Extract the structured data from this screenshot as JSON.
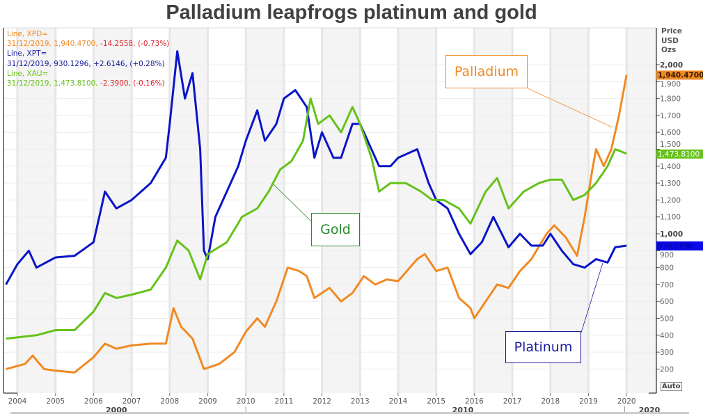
{
  "chart_data": {
    "type": "line",
    "title": "Palladium leapfrogs platinum and gold",
    "ylabel": "Price USD Ozs",
    "ylim": [
      150,
      2100
    ],
    "xlim": [
      2003.7,
      2020.8
    ],
    "y_ticks": [
      200,
      300,
      400,
      500,
      600,
      700,
      800,
      900,
      1000,
      1100,
      1200,
      1300,
      1400,
      1500,
      1600,
      1700,
      1800,
      1900,
      2000
    ],
    "x_ticks": [
      "2004",
      "2005",
      "2006",
      "2007",
      "2008",
      "2009",
      "2010",
      "2011",
      "2012",
      "2013",
      "2014",
      "2015",
      "2016",
      "2017",
      "2018",
      "2019",
      "2020"
    ],
    "decade_labels": [
      "2000",
      "2010",
      "2020"
    ],
    "grid": true,
    "auto_label": "Auto",
    "legend": [
      {
        "line": "Line, XPD=",
        "date": "31/12/2019",
        "value": "1,940.4700",
        "change": "-14.2558",
        "pct": "(-0.73%)",
        "color": "#f08a24",
        "change_color": "#e0202a"
      },
      {
        "line": "Line, XPT=",
        "date": "31/12/2019",
        "value": "930.1296",
        "change": "+2.6146",
        "pct": "(+0.28%)",
        "color": "#1a1aa0",
        "change_color": "#1a1aa0"
      },
      {
        "line": "Line, XAU=",
        "date": "31/12/2019",
        "value": "1,473.8100",
        "change": "-2.3900",
        "pct": "(-0.16%)",
        "color": "#66c21a",
        "change_color": "#e0202a"
      }
    ],
    "price_tags": [
      {
        "label": "1,940.4700",
        "value": 1940.47,
        "bg": "#f08a24",
        "fg": "#3a1a00"
      },
      {
        "label": "1,473.8100",
        "value": 1473.81,
        "bg": "#66c21a",
        "fg": "#ffffff"
      },
      {
        "label": "930.1296",
        "value": 930.13,
        "bg": "#0a0ae6",
        "fg": "#0000a0"
      }
    ],
    "series": [
      {
        "name": "Palladium",
        "color": "#f08a24",
        "x": [
          2003.7,
          2004.2,
          2004.4,
          2004.7,
          2005,
          2005.5,
          2006,
          2006.3,
          2006.6,
          2007,
          2007.5,
          2007.9,
          2008.1,
          2008.3,
          2008.6,
          2008.9,
          2009.3,
          2009.7,
          2010,
          2010.3,
          2010.5,
          2010.8,
          2011.1,
          2011.4,
          2011.6,
          2011.8,
          2012.2,
          2012.5,
          2012.8,
          2013.1,
          2013.4,
          2013.7,
          2014,
          2014.5,
          2014.7,
          2015,
          2015.3,
          2015.6,
          2015.9,
          2016,
          2016.3,
          2016.6,
          2016.9,
          2017.2,
          2017.5,
          2017.9,
          2018.1,
          2018.4,
          2018.7,
          2018.9,
          2019.1,
          2019.2,
          2019.4,
          2019.6,
          2019.8,
          2020
        ],
        "y": [
          200,
          230,
          280,
          200,
          190,
          180,
          270,
          350,
          320,
          340,
          350,
          350,
          560,
          450,
          380,
          200,
          230,
          300,
          420,
          500,
          450,
          600,
          800,
          780,
          750,
          620,
          680,
          600,
          650,
          750,
          700,
          730,
          720,
          850,
          880,
          780,
          800,
          620,
          560,
          500,
          600,
          700,
          680,
          780,
          850,
          1000,
          1050,
          980,
          870,
          1100,
          1380,
          1500,
          1400,
          1500,
          1700,
          1940
        ]
      },
      {
        "name": "Platinum",
        "color": "#0a14c8",
        "x": [
          2003.7,
          2004,
          2004.3,
          2004.5,
          2005,
          2005.5,
          2006,
          2006.3,
          2006.6,
          2007,
          2007.5,
          2007.9,
          2008,
          2008.2,
          2008.4,
          2008.6,
          2008.8,
          2008.9,
          2009,
          2009.2,
          2009.5,
          2009.8,
          2010,
          2010.3,
          2010.5,
          2010.8,
          2011,
          2011.3,
          2011.6,
          2011.8,
          2012,
          2012.3,
          2012.5,
          2012.8,
          2013,
          2013.3,
          2013.5,
          2013.8,
          2014,
          2014.5,
          2014.8,
          2015,
          2015.3,
          2015.6,
          2015.9,
          2016.2,
          2016.5,
          2016.9,
          2017.2,
          2017.5,
          2017.8,
          2018,
          2018.3,
          2018.6,
          2018.9,
          2019.2,
          2019.5,
          2019.7,
          2020
        ],
        "y": [
          700,
          820,
          900,
          800,
          860,
          870,
          950,
          1250,
          1150,
          1200,
          1300,
          1450,
          1650,
          2080,
          1800,
          1950,
          1500,
          900,
          850,
          1100,
          1250,
          1400,
          1550,
          1730,
          1550,
          1650,
          1800,
          1850,
          1750,
          1450,
          1600,
          1450,
          1450,
          1650,
          1650,
          1500,
          1400,
          1400,
          1450,
          1500,
          1300,
          1200,
          1150,
          1000,
          880,
          950,
          1100,
          920,
          1000,
          930,
          930,
          1000,
          900,
          820,
          800,
          850,
          830,
          920,
          930
        ]
      },
      {
        "name": "Gold",
        "color": "#66c21a",
        "x": [
          2003.7,
          2004.5,
          2005,
          2005.5,
          2006,
          2006.3,
          2006.6,
          2007,
          2007.5,
          2007.9,
          2008.2,
          2008.5,
          2008.8,
          2009,
          2009.5,
          2009.9,
          2010.3,
          2010.6,
          2010.9,
          2011.2,
          2011.5,
          2011.7,
          2011.9,
          2012.2,
          2012.5,
          2012.8,
          2013,
          2013.3,
          2013.5,
          2013.8,
          2014.2,
          2014.6,
          2014.9,
          2015.2,
          2015.6,
          2015.9,
          2016.3,
          2016.6,
          2016.9,
          2017.3,
          2017.7,
          2018,
          2018.3,
          2018.6,
          2018.9,
          2019.2,
          2019.5,
          2019.7,
          2020
        ],
        "y": [
          380,
          400,
          430,
          430,
          540,
          650,
          620,
          640,
          670,
          800,
          960,
          900,
          730,
          880,
          950,
          1100,
          1150,
          1250,
          1380,
          1430,
          1550,
          1800,
          1650,
          1700,
          1600,
          1750,
          1650,
          1450,
          1250,
          1300,
          1300,
          1250,
          1200,
          1200,
          1150,
          1060,
          1250,
          1330,
          1150,
          1250,
          1300,
          1320,
          1320,
          1200,
          1230,
          1300,
          1400,
          1500,
          1474
        ]
      }
    ]
  },
  "annotations": {
    "palladium": "Palladium",
    "gold": "Gold",
    "platinum": "Platinum"
  }
}
